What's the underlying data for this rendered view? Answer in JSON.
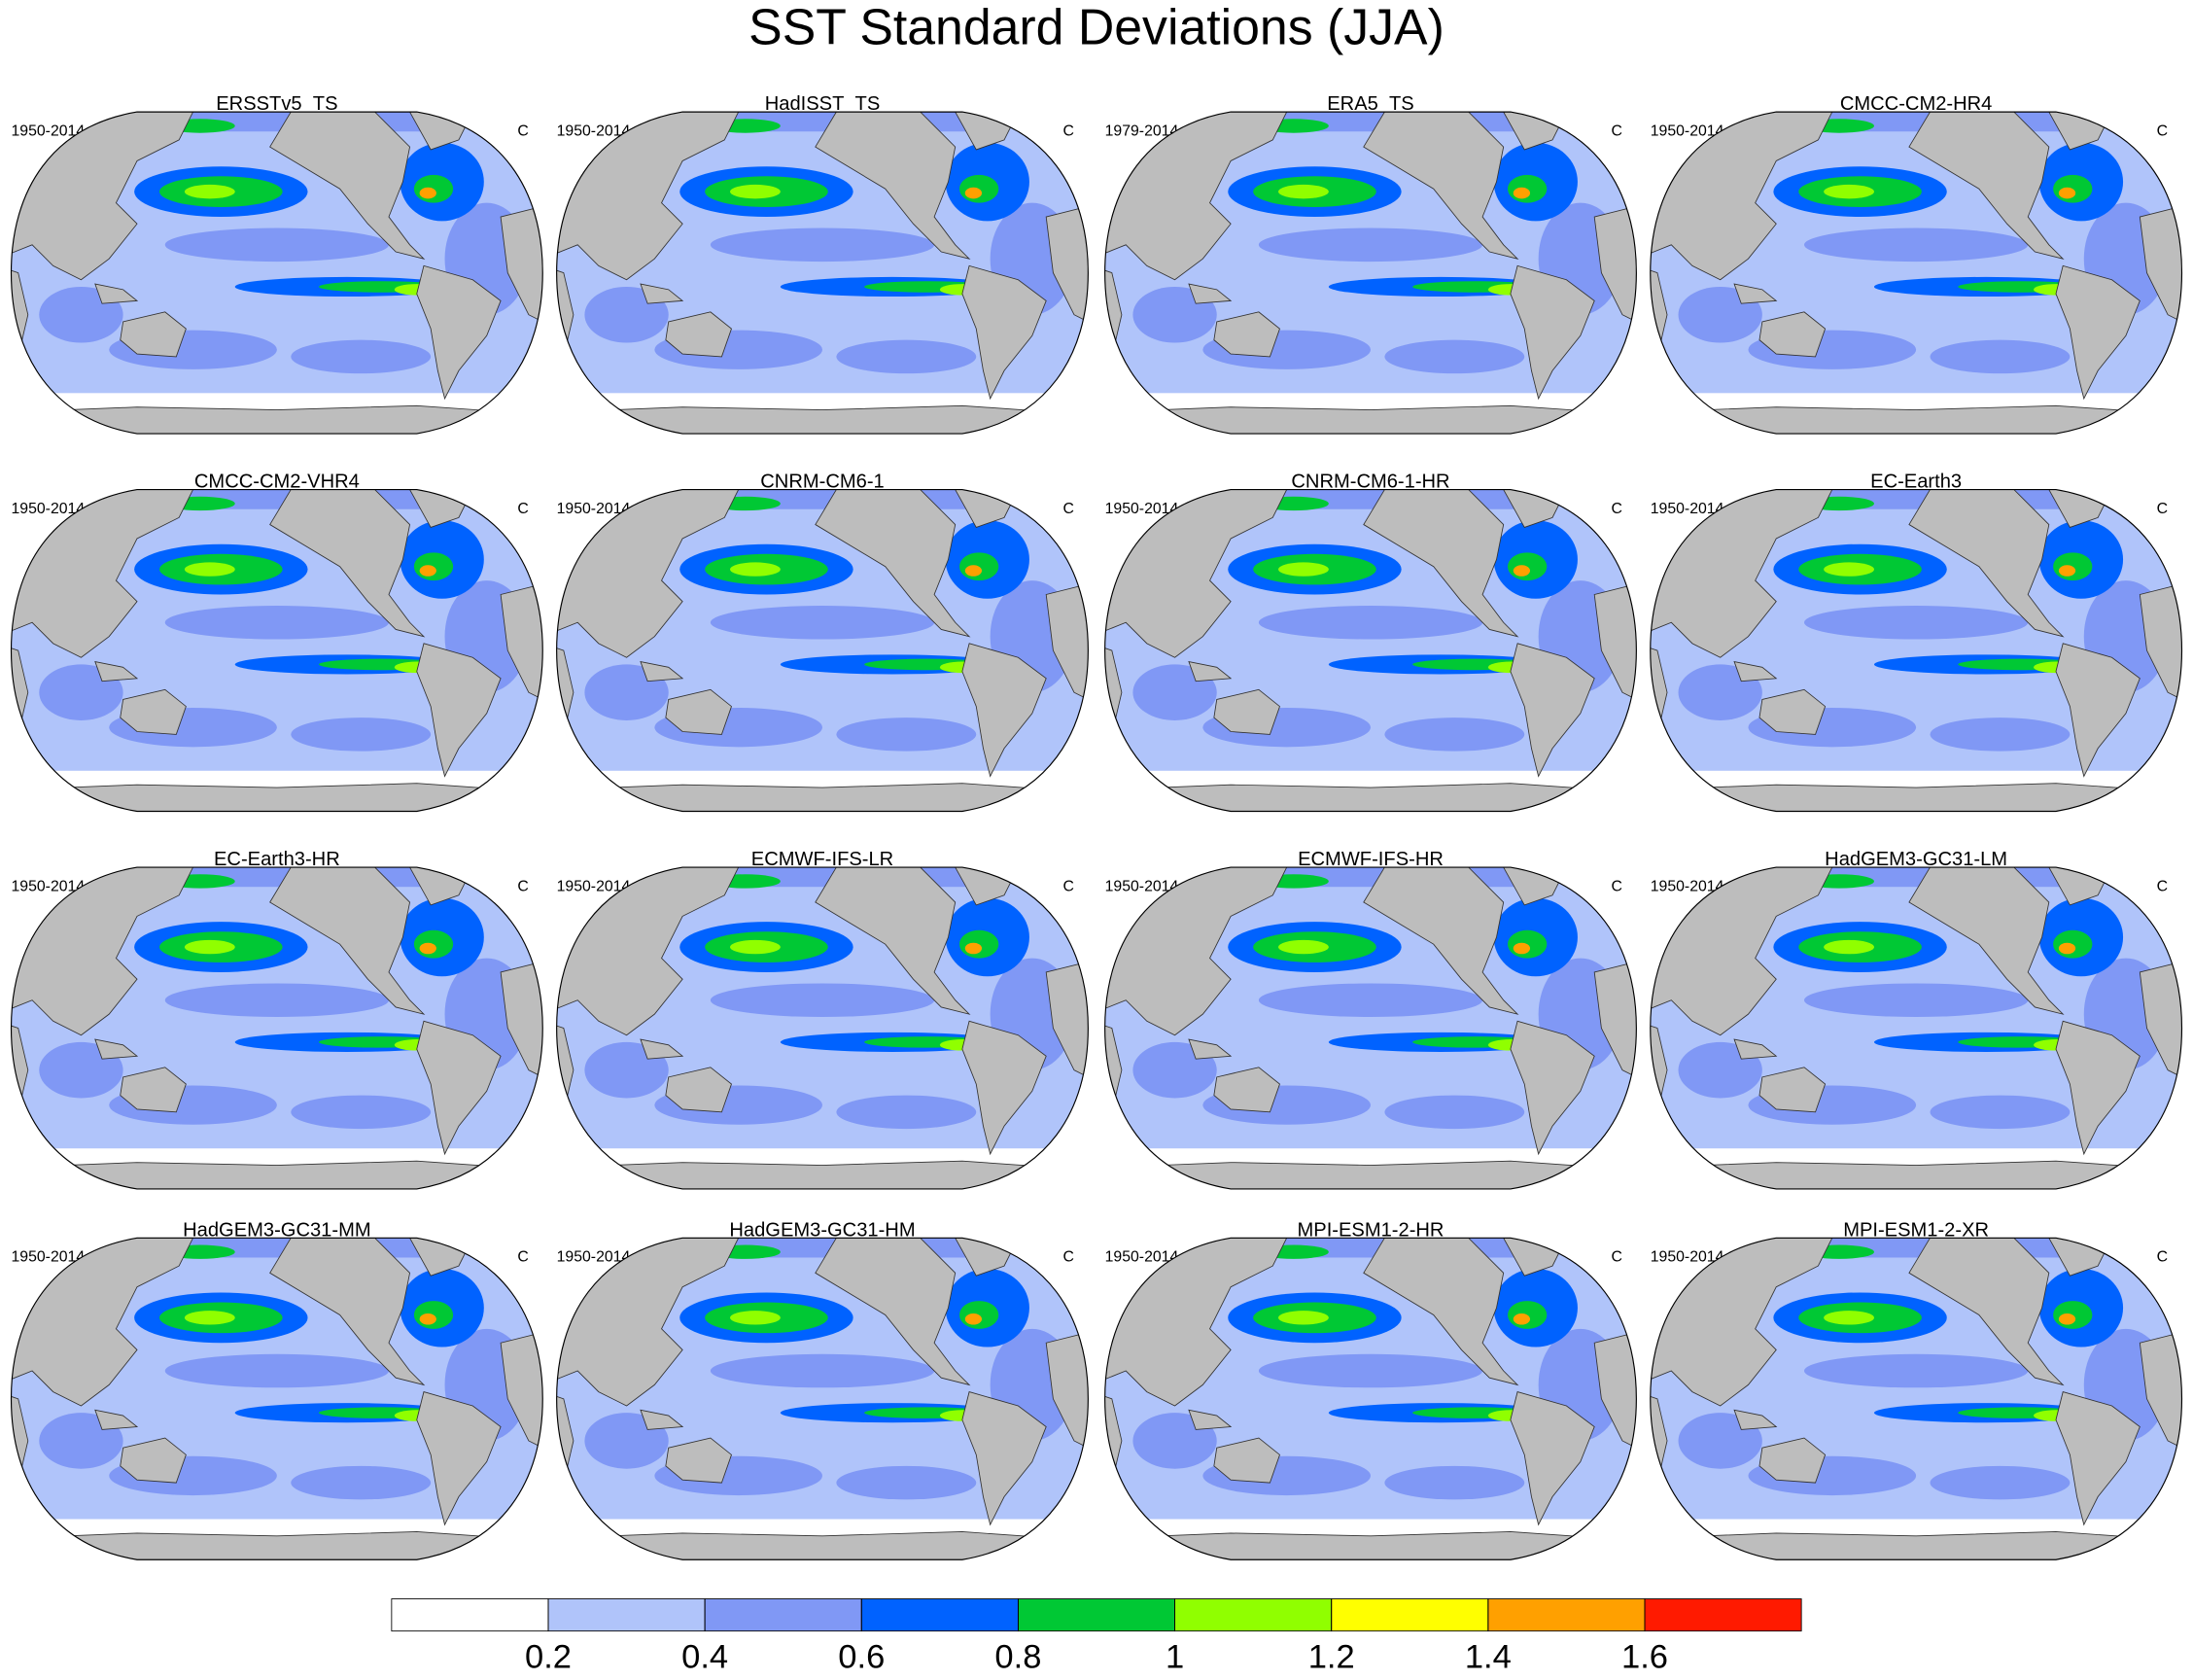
{
  "title": "SST Standard Deviations (JJA)",
  "panels": [
    {
      "title": "ERSSTv5_TS",
      "period": "1950-2014",
      "units": "C"
    },
    {
      "title": "HadISST_TS",
      "period": "1950-2014",
      "units": "C"
    },
    {
      "title": "ERA5_TS",
      "period": "1979-2014",
      "units": "C"
    },
    {
      "title": "CMCC-CM2-HR4",
      "period": "1950-2014",
      "units": "C"
    },
    {
      "title": "CMCC-CM2-VHR4",
      "period": "1950-2014",
      "units": "C"
    },
    {
      "title": "CNRM-CM6-1",
      "period": "1950-2014",
      "units": "C"
    },
    {
      "title": "CNRM-CM6-1-HR",
      "period": "1950-2014",
      "units": "C"
    },
    {
      "title": "EC-Earth3",
      "period": "1950-2014",
      "units": "C"
    },
    {
      "title": "EC-Earth3-HR",
      "period": "1950-2014",
      "units": "C"
    },
    {
      "title": "ECMWF-IFS-LR",
      "period": "1950-2014",
      "units": "C"
    },
    {
      "title": "ECMWF-IFS-HR",
      "period": "1950-2014",
      "units": "C"
    },
    {
      "title": "HadGEM3-GC31-LM",
      "period": "1950-2014",
      "units": "C"
    },
    {
      "title": "HadGEM3-GC31-MM",
      "period": "1950-2014",
      "units": "C"
    },
    {
      "title": "HadGEM3-GC31-HM",
      "period": "1950-2014",
      "units": "C"
    },
    {
      "title": "MPI-ESM1-2-HR",
      "period": "1950-2014",
      "units": "C"
    },
    {
      "title": "MPI-ESM1-2-XR",
      "period": "1950-2014",
      "units": "C"
    }
  ],
  "colorbar": {
    "colors": [
      "#ffffff",
      "#b0c4fa",
      "#8098f5",
      "#0062ff",
      "#00c834",
      "#90ff00",
      "#ffff00",
      "#ffa000",
      "#ff1a00"
    ],
    "ticks": [
      0.2,
      0.4,
      0.6,
      0.8,
      1,
      1.2,
      1.4,
      1.6
    ]
  }
}
